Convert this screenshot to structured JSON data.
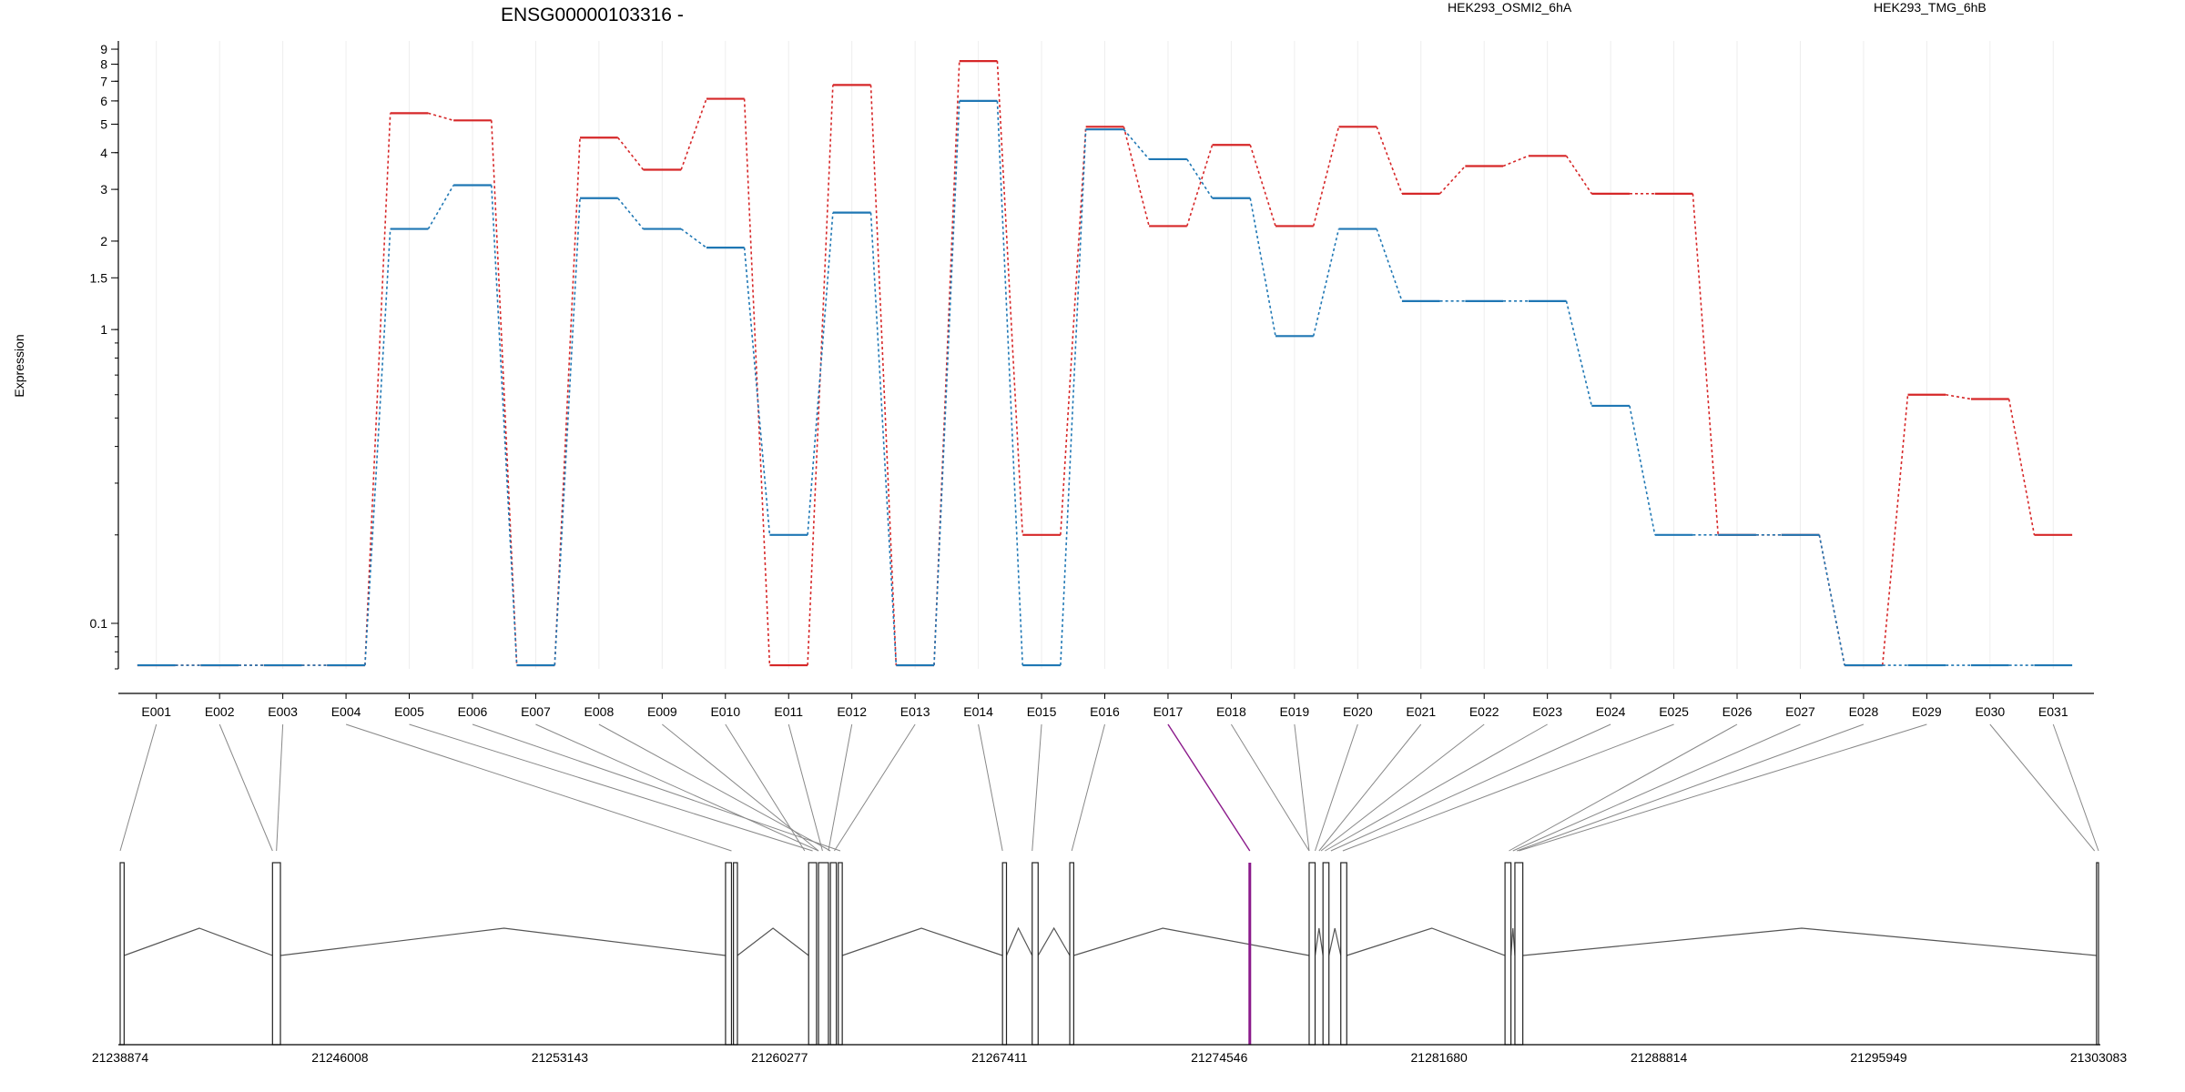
{
  "chart_data": {
    "type": "line",
    "title": "ENSG00000103316 -",
    "ylabel": "Expression",
    "xlabel": "",
    "y_scale": "log",
    "ylim": [
      0.07,
      9.6
    ],
    "y_ticks": [
      {
        "v": 9,
        "label": "9"
      },
      {
        "v": 8,
        "label": "8"
      },
      {
        "v": 7,
        "label": "7"
      },
      {
        "v": 6,
        "label": "6"
      },
      {
        "v": 5,
        "label": "5"
      },
      {
        "v": 4,
        "label": "4"
      },
      {
        "v": 3,
        "label": "3"
      },
      {
        "v": 2,
        "label": "2"
      },
      {
        "v": 1.5,
        "label": "1.5"
      },
      {
        "v": 1,
        "label": "1"
      },
      {
        "v": 0.1,
        "label": "0.1"
      }
    ],
    "categories": [
      "E001",
      "E002",
      "E003",
      "E004",
      "E005",
      "E006",
      "E007",
      "E008",
      "E009",
      "E010",
      "E011",
      "E012",
      "E013",
      "E014",
      "E015",
      "E016",
      "E017",
      "E018",
      "E019",
      "E020",
      "E021",
      "E022",
      "E023",
      "E024",
      "E025",
      "E026",
      "E027",
      "E028",
      "E029",
      "E030",
      "E031"
    ],
    "highlight_color": "#8b1a8b",
    "highlight_index": 16,
    "series": [
      {
        "name": "HEK293_OSMI2_6hA",
        "color": "#d62728",
        "values": [
          0.072,
          0.072,
          0.072,
          0.072,
          5.45,
          5.15,
          0.072,
          4.5,
          3.5,
          6.1,
          0.072,
          6.8,
          0.072,
          8.2,
          0.2,
          4.9,
          2.25,
          4.25,
          2.25,
          4.9,
          2.9,
          3.6,
          3.9,
          2.9,
          2.9,
          0.2,
          0.2,
          0.072,
          0.6,
          0.58,
          0.2
        ]
      },
      {
        "name": "HEK293_TMG_6hB",
        "color": "#1f77b4",
        "values": [
          0.072,
          0.072,
          0.072,
          0.072,
          2.2,
          3.1,
          0.072,
          2.8,
          2.2,
          1.9,
          0.2,
          2.5,
          0.072,
          6.0,
          0.072,
          4.8,
          3.8,
          2.8,
          0.95,
          2.2,
          1.25,
          1.25,
          1.25,
          0.55,
          0.2,
          0.2,
          0.2,
          0.072,
          0.072,
          0.072,
          0.072
        ]
      }
    ]
  },
  "gene_model": {
    "coordinate_labels": [
      "21238874",
      "21246008",
      "21253143",
      "21260277",
      "21267411",
      "21274546",
      "21281680",
      "21288814",
      "21295949",
      "21303083"
    ],
    "exon_anchor_fraction": [
      0.0,
      0.077,
      0.079,
      0.309,
      0.35,
      0.364,
      0.353,
      0.359,
      0.353,
      0.346,
      0.355,
      0.358,
      0.361,
      0.446,
      0.461,
      0.481,
      0.571,
      0.601,
      0.601,
      0.604,
      0.606,
      0.607,
      0.609,
      0.612,
      0.618,
      0.702,
      0.704,
      0.706,
      0.707,
      0.998,
      1.0
    ],
    "exon_blocks": [
      {
        "start": 0.0,
        "end": 0.002
      },
      {
        "start": 0.077,
        "end": 0.081
      },
      {
        "start": 0.306,
        "end": 0.309
      },
      {
        "start": 0.31,
        "end": 0.312
      },
      {
        "start": 0.348,
        "end": 0.352
      },
      {
        "start": 0.353,
        "end": 0.358
      },
      {
        "start": 0.359,
        "end": 0.362
      },
      {
        "start": 0.363,
        "end": 0.365
      },
      {
        "start": 0.446,
        "end": 0.448
      },
      {
        "start": 0.461,
        "end": 0.464
      },
      {
        "start": 0.48,
        "end": 0.482
      },
      {
        "start": 0.601,
        "end": 0.604
      },
      {
        "start": 0.608,
        "end": 0.611
      },
      {
        "start": 0.617,
        "end": 0.62
      },
      {
        "start": 0.7,
        "end": 0.703
      },
      {
        "start": 0.705,
        "end": 0.709
      },
      {
        "start": 0.999,
        "end": 1.0
      }
    ],
    "highlight_fraction": 0.571,
    "intron_peaks": [
      0.04,
      0.194,
      0.33,
      0.405,
      0.454,
      0.472,
      0.527,
      0.587,
      0.614,
      0.663,
      0.85
    ]
  },
  "legend": [
    {
      "label": "HEK293_OSMI2_6hA",
      "color": "#d62728"
    },
    {
      "label": "HEK293_TMG_6hB",
      "color": "#1f77b4"
    }
  ]
}
